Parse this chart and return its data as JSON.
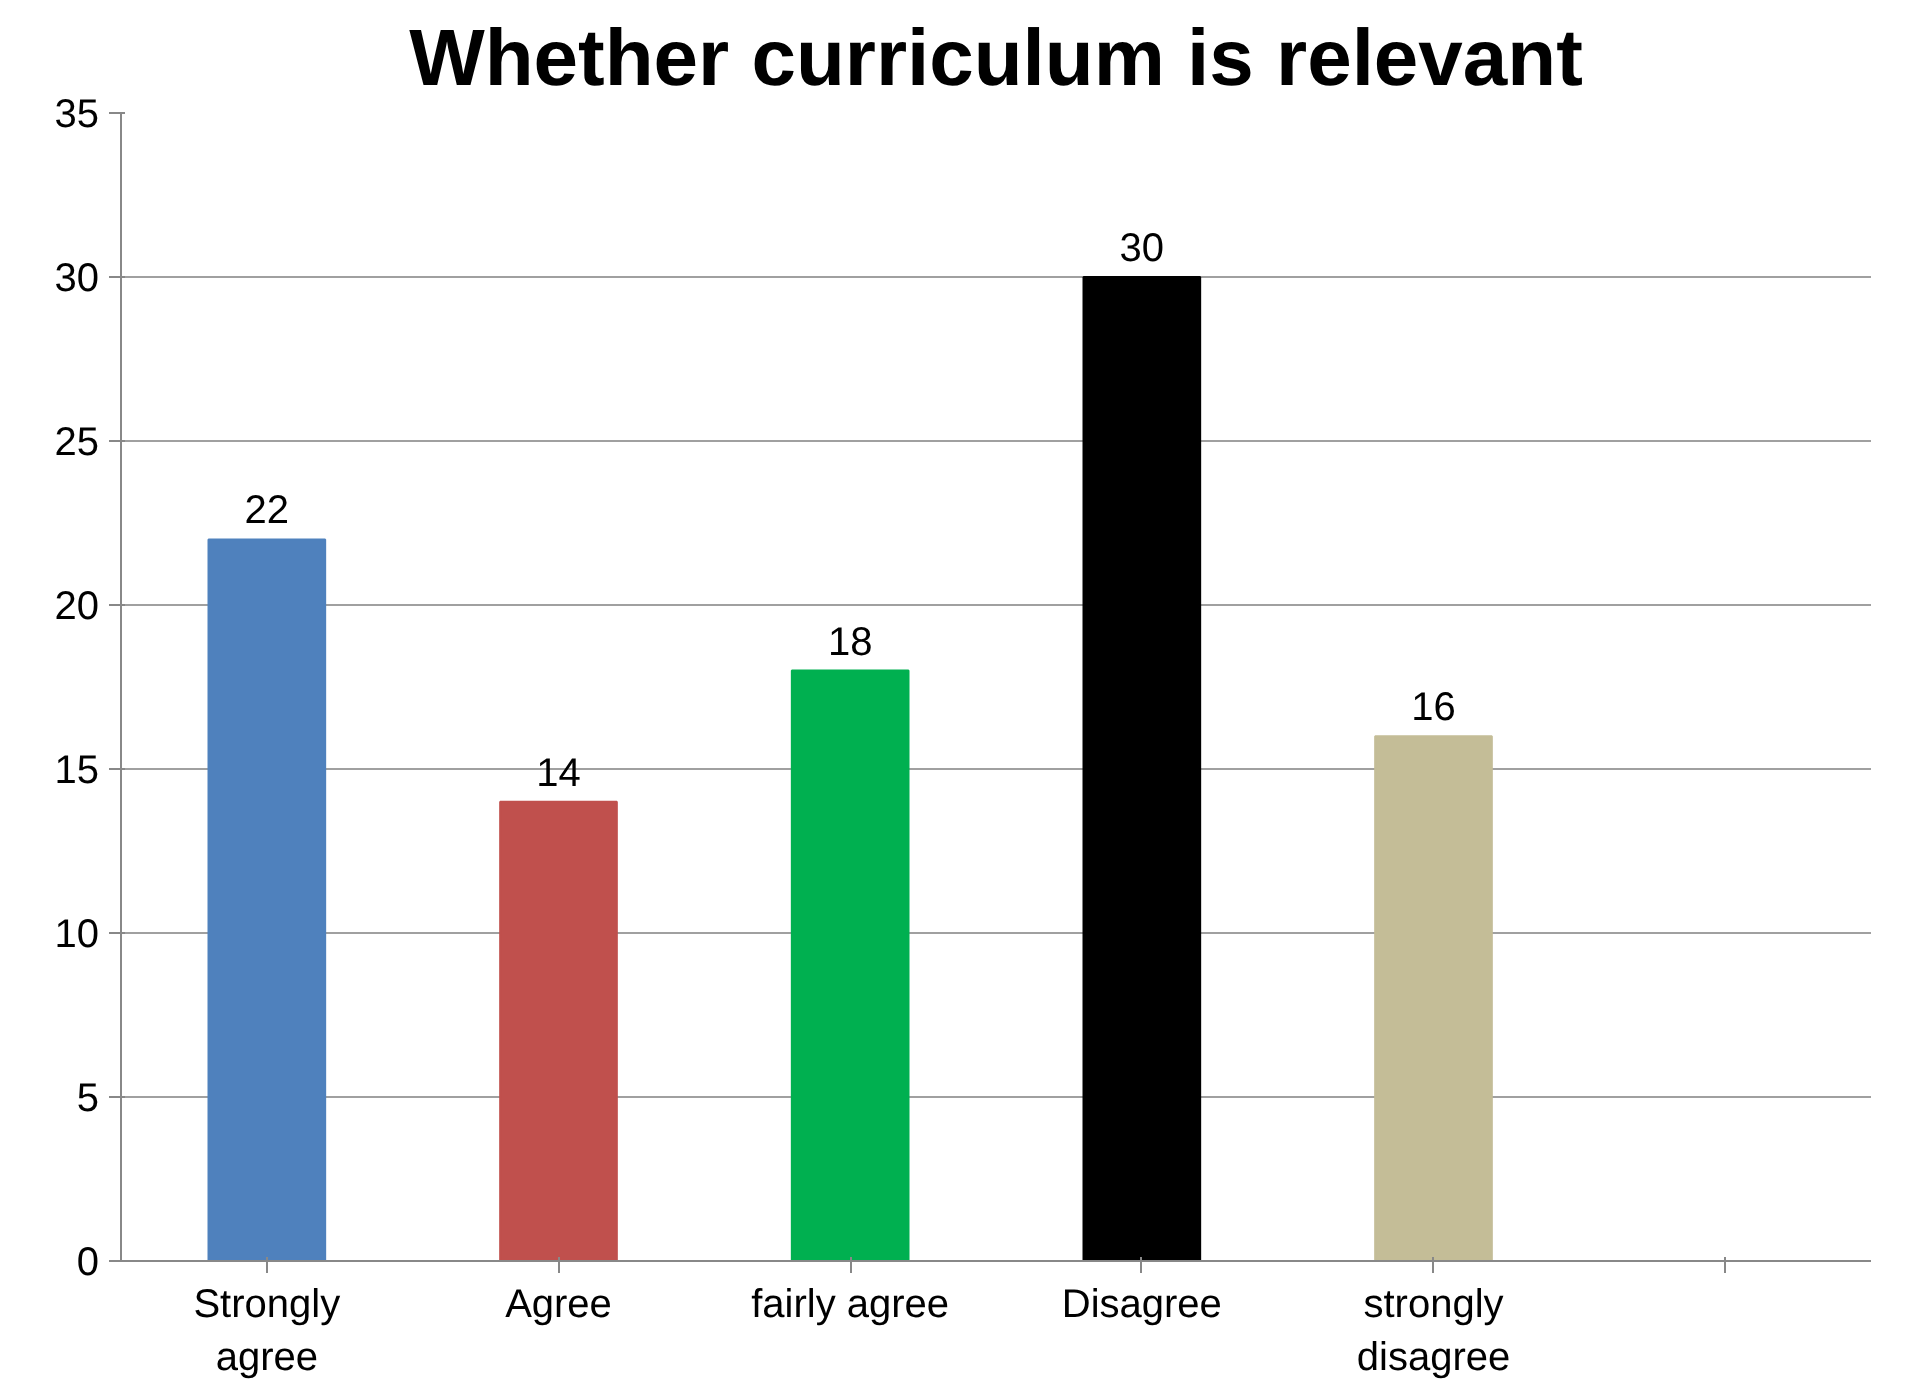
{
  "chart_data": {
    "type": "bar",
    "title": "Whether curriculum is relevant",
    "categories": [
      "Strongly\nagree",
      "Agree",
      "fairly agree",
      "Disagree",
      "strongly\ndisagree",
      null
    ],
    "values": [
      22,
      14,
      18,
      30,
      16,
      null
    ],
    "colors": [
      "#4f81bd",
      "#c0504d",
      "#00b050",
      "#000000",
      "#c4bd97",
      null
    ],
    "ylim": [
      0,
      35
    ],
    "yticks": [
      0,
      5,
      10,
      15,
      20,
      25,
      30,
      35
    ],
    "grid": "y",
    "data_labels": true
  }
}
